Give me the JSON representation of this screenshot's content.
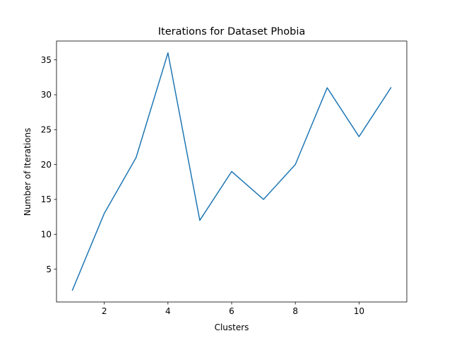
{
  "chart_data": {
    "type": "line",
    "title": "Iterations for Dataset Phobia",
    "xlabel": "Clusters",
    "ylabel": "Number of Iterations",
    "x": [
      1,
      2,
      3,
      4,
      5,
      6,
      7,
      8,
      9,
      10,
      11
    ],
    "series": [
      {
        "values": [
          2,
          13,
          21,
          36,
          12,
          19,
          15,
          20,
          31,
          24,
          31
        ],
        "color": "#1f77b4"
      }
    ],
    "xlim": [
      0.5,
      11.5
    ],
    "ylim": [
      0.3,
      37.7
    ],
    "xticks": [
      2,
      4,
      6,
      8,
      10
    ],
    "yticks": [
      5,
      10,
      15,
      20,
      25,
      30,
      35
    ],
    "grid": false,
    "legend": "none"
  }
}
